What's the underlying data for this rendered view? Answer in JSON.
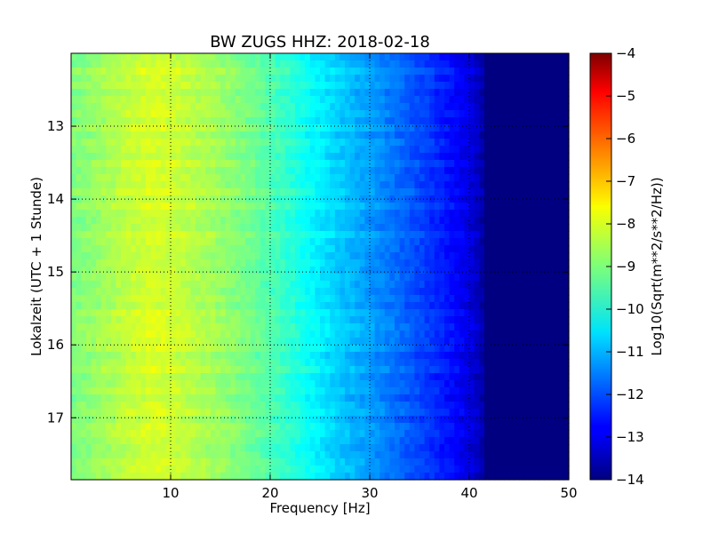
{
  "chart_data": {
    "type": "heatmap",
    "title": "BW ZUGS HHZ: 2018-02-18",
    "xlabel": "Frequency [Hz]",
    "ylabel": "Lokalzeit (UTC + 1 Stunde)",
    "xlim": [
      0,
      50
    ],
    "ylim": [
      12.0,
      17.85
    ],
    "y_inverted": true,
    "x_ticks": [
      10,
      20,
      30,
      40,
      50
    ],
    "y_ticks": [
      13,
      14,
      15,
      16,
      17
    ],
    "grid": true,
    "colormap": "jet",
    "colorbar": {
      "label": "Log10(Sqrt(m**2/s**2/Hz))",
      "range": [
        -14,
        -4
      ],
      "ticks": [
        -4,
        -5,
        -6,
        -7,
        -8,
        -9,
        -10,
        -11,
        -12,
        -13,
        -14
      ]
    },
    "profile": {
      "frequency_hz": [
        0,
        2,
        5,
        8,
        10,
        14,
        18,
        22,
        25,
        28,
        30,
        33,
        36,
        38,
        40,
        41,
        42,
        50
      ],
      "log10_amplitude": [
        -9.0,
        -8.8,
        -8.4,
        -8.1,
        -8.2,
        -8.6,
        -9.1,
        -9.8,
        -10.4,
        -10.9,
        -11.2,
        -11.7,
        -12.2,
        -12.6,
        -13.0,
        -13.4,
        -14.0,
        -14.0
      ]
    }
  }
}
